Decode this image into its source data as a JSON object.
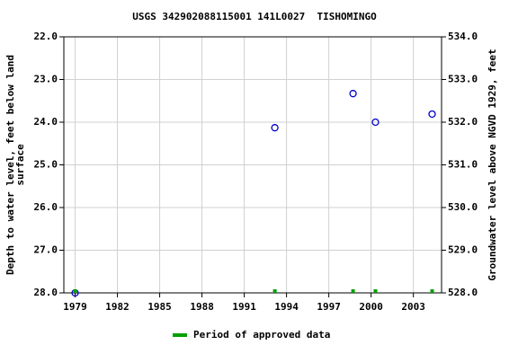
{
  "chart_data": {
    "type": "scatter",
    "title": "USGS 342902088115001 141L0027  TISHOMINGO",
    "y_label": [
      "Depth to water level, feet below land",
      "surface"
    ],
    "y2_label": "Groundwater level above NGVD 1929, feet",
    "series": [
      {
        "name": "Depth to water level",
        "color": "#0000cc",
        "x": [
          1979.0,
          1993.17,
          1998.72,
          2000.31,
          2004.33
        ],
        "values": [
          28.0,
          24.13,
          23.33,
          24.0,
          23.81
        ]
      },
      {
        "name": "Period of approved data",
        "color": "#00a000",
        "x": [
          1979.0,
          1993.17,
          1998.72,
          2000.31,
          2004.33
        ]
      }
    ],
    "xlim": [
      1978.2,
      2005.0
    ],
    "xticks": [
      1979,
      1982,
      1985,
      1988,
      1991,
      1994,
      1997,
      2000,
      2003
    ],
    "ylim": [
      22.0,
      28.0
    ],
    "invert_y": true,
    "yticks": [
      {
        "value": 22,
        "label": "22.0"
      },
      {
        "value": 23,
        "label": "23.0"
      },
      {
        "value": 24,
        "label": "24.0"
      },
      {
        "value": 25,
        "label": "25.0"
      },
      {
        "value": 26,
        "label": "26.0"
      },
      {
        "value": 27,
        "label": "27.0"
      },
      {
        "value": 28,
        "label": "28.0"
      }
    ],
    "y2lim": [
      528.0,
      534.0
    ],
    "y2ticks": [
      {
        "value": 528,
        "label": "528.0"
      },
      {
        "value": 529,
        "label": "529.0"
      },
      {
        "value": 530,
        "label": "530.0"
      },
      {
        "value": 531,
        "label": "531.0"
      },
      {
        "value": 532,
        "label": "532.0"
      },
      {
        "value": 533,
        "label": "533.0"
      },
      {
        "value": 534,
        "label": "534.0"
      }
    ],
    "grid": true
  }
}
